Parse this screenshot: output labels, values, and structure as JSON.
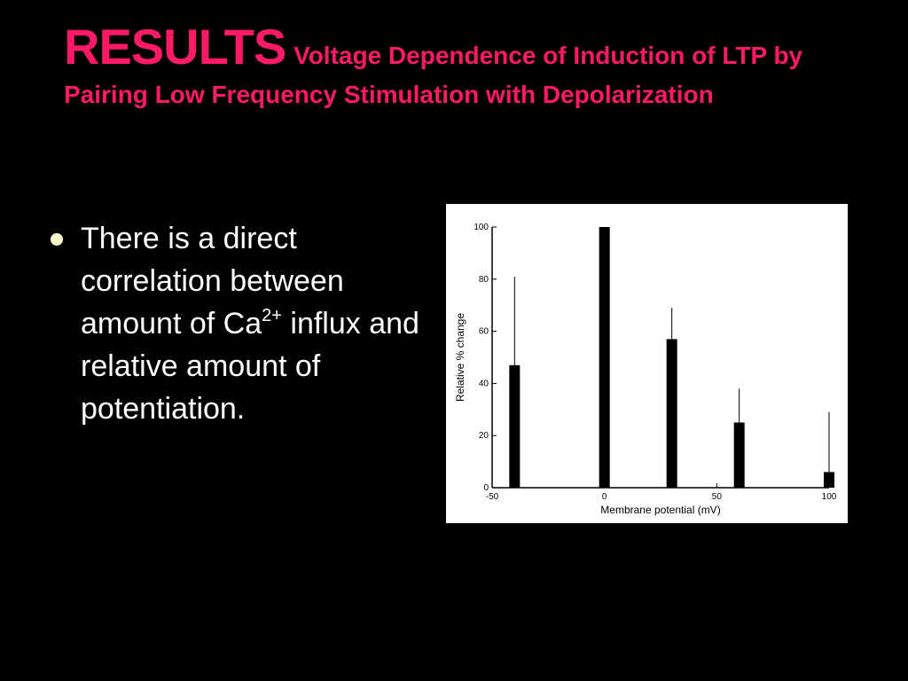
{
  "slide": {
    "title_main": "RESULTS",
    "title_sub": "Voltage Dependence of Induction of LTP by Pairing Low Frequency Stimulation with Depolarization",
    "accent_color": "#ff1a66",
    "background": "#000000"
  },
  "bullets": [
    {
      "before": "There is a direct correlation between amount of Ca",
      "superscript": "2+",
      "after": " influx and relative amount of potentiation."
    }
  ],
  "chart_data": {
    "type": "bar",
    "xlabel": "Membrane potential (mV)",
    "ylabel": "Relative % change",
    "xlim": [
      -50,
      100
    ],
    "ylim": [
      0,
      100
    ],
    "x_ticks": [
      -50,
      0,
      50,
      100
    ],
    "y_ticks": [
      0,
      20,
      40,
      60,
      80,
      100
    ],
    "points": [
      {
        "x": -40,
        "y": 47,
        "error": 34
      },
      {
        "x": 0,
        "y": 100,
        "error": 0
      },
      {
        "x": 30,
        "y": 57,
        "error": 12
      },
      {
        "x": 60,
        "y": 25,
        "error": 13
      },
      {
        "x": 100,
        "y": 6,
        "error": 23
      }
    ],
    "grid": false,
    "legend": "none"
  }
}
